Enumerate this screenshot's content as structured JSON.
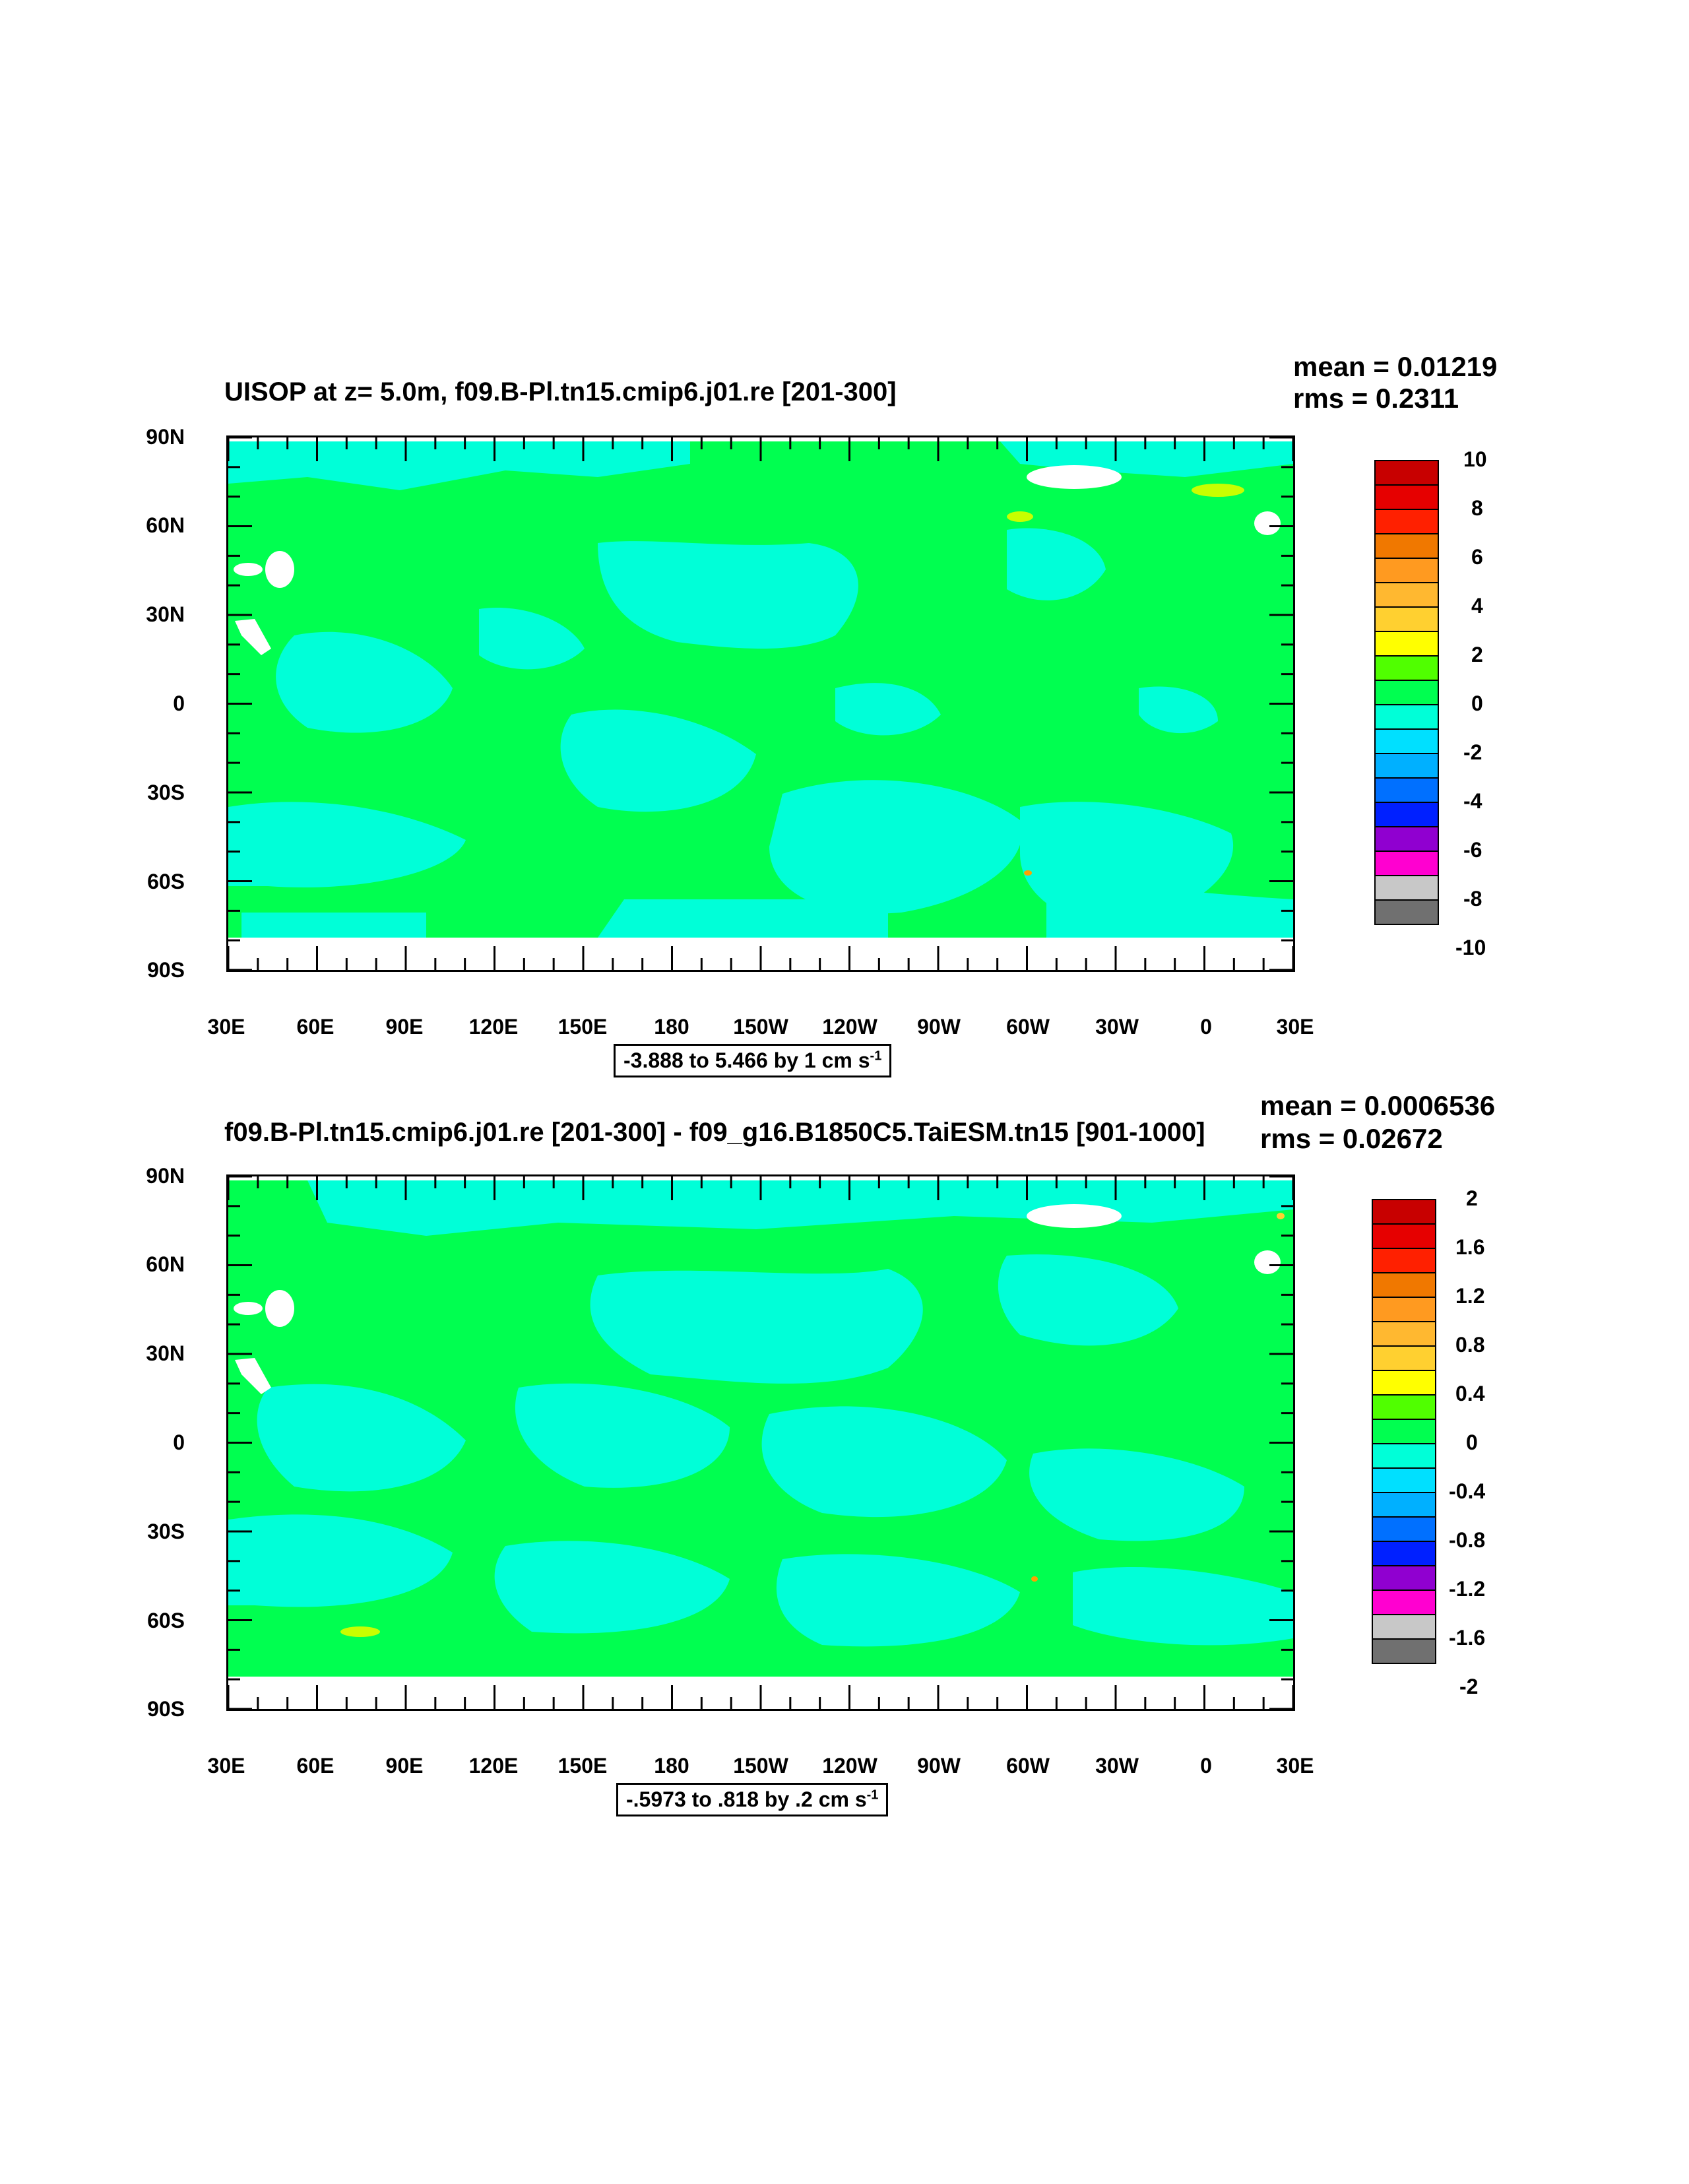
{
  "colors": {
    "green": "#00ff50",
    "cyan": "#00ffd8",
    "yellow_green": "#c8ff00",
    "orange": "#ffa000",
    "white": "#ffffff"
  },
  "colorbar_colors": [
    "#c80000",
    "#e60000",
    "#ff2000",
    "#f07800",
    "#ff9a20",
    "#ffb830",
    "#ffd030",
    "#ffff00",
    "#50ff00",
    "#00ff50",
    "#00ffd8",
    "#00e0ff",
    "#00b0ff",
    "#0070ff",
    "#0020ff",
    "#9000d0",
    "#ff00d0",
    "#c8c8c8",
    "#707070"
  ],
  "axes": {
    "y_labels": [
      "90N",
      "60N",
      "30N",
      "0",
      "30S",
      "60S",
      "90S"
    ],
    "x_labels": [
      "30E",
      "60E",
      "90E",
      "120E",
      "150E",
      "180",
      "150W",
      "120W",
      "90W",
      "60W",
      "30W",
      "0",
      "30E"
    ]
  },
  "panels": [
    {
      "title": "UISOP at z=   5.0m, f09.B-Pl.tn15.cmip6.j01.re [201-300]",
      "mean": "mean = 0.01219",
      "rms": "rms = 0.2311",
      "range_text": "-3.888 to 5.466 by 1 cm s",
      "range_unit_sup": "-1",
      "colorbar_labels": [
        "10",
        "8",
        "6",
        "4",
        "2",
        "0",
        "-2",
        "-4",
        "-6",
        "-8",
        "-10"
      ]
    },
    {
      "title": "f09.B-Pl.tn15.cmip6.j01.re [201-300] - f09_g16.B1850C5.TaiESM.tn15 [901-1000]",
      "mean": "mean = 0.0006536",
      "rms": "rms = 0.02672",
      "range_text": "-.5973 to .818 by .2 cm s",
      "range_unit_sup": "-1",
      "colorbar_labels": [
        "2",
        "1.6",
        "1.2",
        "0.8",
        "0.4",
        "0",
        "-0.4",
        "-0.8",
        "-1.2",
        "-1.6",
        "-2"
      ]
    }
  ],
  "chart_data": [
    {
      "type": "heatmap",
      "title": "UISOP at z=   5.0m, f09.B-Pl.tn15.cmip6.j01.re [201-300]",
      "x_ticks": [
        "30E",
        "60E",
        "90E",
        "120E",
        "150E",
        "180",
        "150W",
        "120W",
        "90W",
        "60W",
        "30W",
        "0",
        "30E"
      ],
      "y_ticks": [
        "90N",
        "60N",
        "30N",
        "0",
        "30S",
        "60S",
        "90S"
      ],
      "levels": [
        -10,
        -8,
        -6,
        -4,
        -2,
        0,
        2,
        4,
        6,
        8,
        10
      ],
      "data_range": [
        -3.888,
        5.466
      ],
      "interval": 1,
      "units": "cm s-1",
      "mean": 0.01219,
      "rms": 0.2311
    },
    {
      "type": "heatmap",
      "title": "f09.B-Pl.tn15.cmip6.j01.re [201-300] - f09_g16.B1850C5.TaiESM.tn15 [901-1000]",
      "x_ticks": [
        "30E",
        "60E",
        "90E",
        "120E",
        "150E",
        "180",
        "150W",
        "120W",
        "90W",
        "60W",
        "30W",
        "0",
        "30E"
      ],
      "y_ticks": [
        "90N",
        "60N",
        "30N",
        "0",
        "30S",
        "60S",
        "90S"
      ],
      "levels": [
        -2,
        -1.6,
        -1.2,
        -0.8,
        -0.4,
        0,
        0.4,
        0.8,
        1.2,
        1.6,
        2
      ],
      "data_range": [
        -0.5973,
        0.818
      ],
      "interval": 0.2,
      "units": "cm s-1",
      "mean": 0.0006536,
      "rms": 0.02672
    }
  ]
}
